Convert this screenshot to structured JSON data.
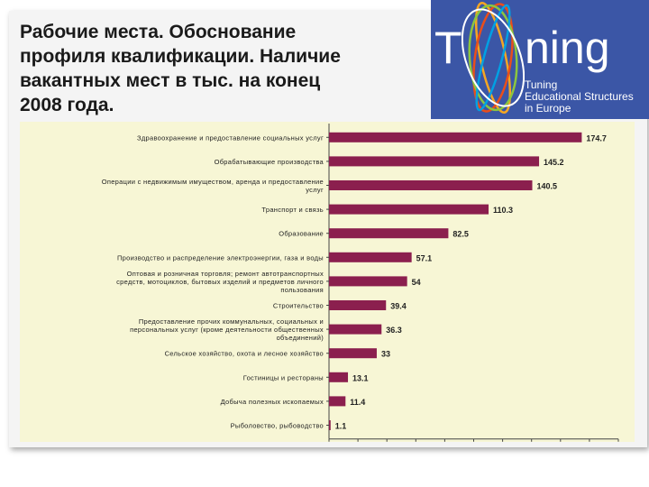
{
  "slide": {
    "title": "Рабочие места. Обоснование\nпрофиля квалификации. Наличие\nвакантных мест  в тыс. на конец\n2008 года."
  },
  "logo": {
    "letter_t": "T",
    "word_rest": "ning",
    "subtitle": "Tuning\nEducational Structures\nin Europe",
    "colors": {
      "background": "#3b56a6",
      "rings": [
        "#f5a623",
        "#e94e1b",
        "#8cc63f",
        "#00a0e3",
        "#ffffff"
      ]
    }
  },
  "chart_data": {
    "type": "bar",
    "orientation": "horizontal",
    "categories": [
      "Здравоохранение и предоставление социальных услуг",
      "Обрабатывающие производства",
      "Операции с недвижимым имуществом, аренда и предоставление услуг",
      "Транспорт и связь",
      "Образование",
      "Производство и распределение электроэнергии, газа и воды",
      "Оптовая и розничная торговля; ремонт автотранспортных средств, мотоциклов, бытовых изделий и предметов личного пользования",
      "Строительство",
      "Предоставление прочих коммунальных, социальных и персональных услуг (кроме деятельности общественных объединений)",
      "Сельское хозяйство, охота и лесное хозяйство",
      "Гостиницы и рестораны",
      "Добыча полезных ископаемых",
      "Рыболовство, рыбоводство"
    ],
    "values": [
      174.7,
      145.2,
      140.5,
      110.3,
      82.5,
      57.1,
      54,
      39.4,
      36.3,
      33,
      13.1,
      11.4,
      1.1
    ],
    "value_labels": [
      "174.7",
      "145.2",
      "140.5",
      "110.3",
      "82.5",
      "57.1",
      "54",
      "39.4",
      "36.3",
      "33",
      "13.1",
      "11.4",
      "1.1"
    ],
    "xlim": [
      0,
      200
    ],
    "x_ticks": [
      "0",
      "20",
      "40",
      "60",
      "80",
      "100",
      "120",
      "140",
      "160",
      "180",
      "200"
    ],
    "bar_color": "#8b1f4e",
    "plot_background": "#f7f6d5",
    "grid": false
  }
}
